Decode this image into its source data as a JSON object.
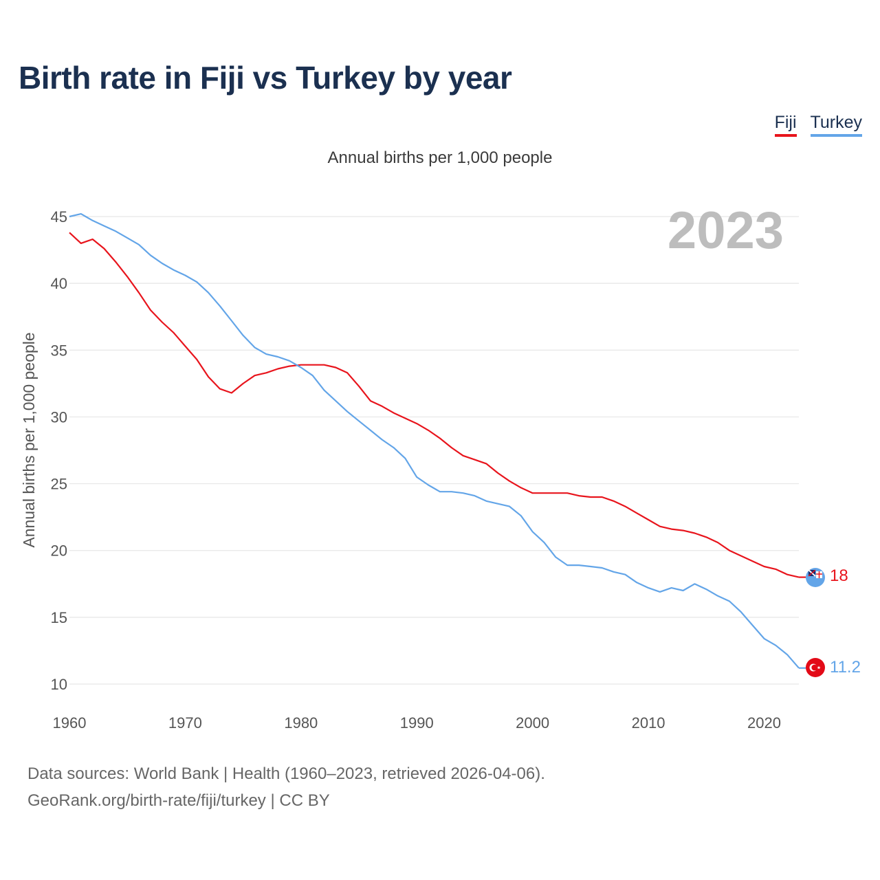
{
  "title": "Birth rate in Fiji vs Turkey by year",
  "subtitle": "Annual births per 1,000 people",
  "legend": [
    {
      "label": "Fiji",
      "color": "#e8141c"
    },
    {
      "label": "Turkey",
      "color": "#63a5e8"
    }
  ],
  "year_badge": "2023",
  "source": {
    "line1": "Data sources: World Bank | Health (1960–2023, retrieved 2026-04-06).",
    "line2": "GeoRank.org/birth-rate/fiji/turkey | CC BY"
  },
  "chart_data": {
    "type": "line",
    "title": "Birth rate in Fiji vs Turkey by year",
    "ylabel": "Annual births per 1,000 people",
    "xlabel": "",
    "xlim": [
      1960,
      2023
    ],
    "ylim": [
      10,
      45
    ],
    "x_ticks": [
      1960,
      1970,
      1980,
      1990,
      2000,
      2010,
      2020
    ],
    "y_ticks": [
      10,
      15,
      20,
      25,
      30,
      35,
      40,
      45
    ],
    "grid": true,
    "series": [
      {
        "name": "Fiji",
        "color": "#e8141c",
        "end_label": "18",
        "flag": "fiji-flag-icon",
        "x": [
          1960,
          1961,
          1962,
          1963,
          1964,
          1965,
          1966,
          1967,
          1968,
          1969,
          1970,
          1971,
          1972,
          1973,
          1974,
          1975,
          1976,
          1977,
          1978,
          1979,
          1980,
          1981,
          1982,
          1983,
          1984,
          1985,
          1986,
          1987,
          1988,
          1989,
          1990,
          1991,
          1992,
          1993,
          1994,
          1995,
          1996,
          1997,
          1998,
          1999,
          2000,
          2001,
          2002,
          2003,
          2004,
          2005,
          2006,
          2007,
          2008,
          2009,
          2010,
          2011,
          2012,
          2013,
          2014,
          2015,
          2016,
          2017,
          2018,
          2019,
          2020,
          2021,
          2022,
          2023
        ],
        "values": [
          43.8,
          43.0,
          43.3,
          42.6,
          41.6,
          40.5,
          39.3,
          38.0,
          37.1,
          36.3,
          35.3,
          34.3,
          33.0,
          32.1,
          31.8,
          32.5,
          33.1,
          33.3,
          33.6,
          33.8,
          33.9,
          33.9,
          33.9,
          33.7,
          33.3,
          32.3,
          31.2,
          30.8,
          30.3,
          29.9,
          29.5,
          29.0,
          28.4,
          27.7,
          27.1,
          26.8,
          26.5,
          25.8,
          25.2,
          24.7,
          24.3,
          24.3,
          24.3,
          24.3,
          24.1,
          24.0,
          24.0,
          23.7,
          23.3,
          22.8,
          22.3,
          21.8,
          21.6,
          21.5,
          21.3,
          21.0,
          20.6,
          20.0,
          19.6,
          19.2,
          18.8,
          18.6,
          18.2,
          18.0
        ]
      },
      {
        "name": "Turkey",
        "color": "#63a5e8",
        "end_label": "11.2",
        "flag": "turkey-flag-icon",
        "x": [
          1960,
          1961,
          1962,
          1963,
          1964,
          1965,
          1966,
          1967,
          1968,
          1969,
          1970,
          1971,
          1972,
          1973,
          1974,
          1975,
          1976,
          1977,
          1978,
          1979,
          1980,
          1981,
          1982,
          1983,
          1984,
          1985,
          1986,
          1987,
          1988,
          1989,
          1990,
          1991,
          1992,
          1993,
          1994,
          1995,
          1996,
          1997,
          1998,
          1999,
          2000,
          2001,
          2002,
          2003,
          2004,
          2005,
          2006,
          2007,
          2008,
          2009,
          2010,
          2011,
          2012,
          2013,
          2014,
          2015,
          2016,
          2017,
          2018,
          2019,
          2020,
          2021,
          2022,
          2023
        ],
        "values": [
          45.0,
          45.2,
          44.7,
          44.3,
          43.9,
          43.4,
          42.9,
          42.1,
          41.5,
          41.0,
          40.6,
          40.1,
          39.3,
          38.3,
          37.2,
          36.1,
          35.2,
          34.7,
          34.5,
          34.2,
          33.7,
          33.1,
          32.0,
          31.2,
          30.4,
          29.7,
          29.0,
          28.3,
          27.7,
          26.9,
          25.5,
          24.9,
          24.4,
          24.4,
          24.3,
          24.1,
          23.7,
          23.5,
          23.3,
          22.6,
          21.4,
          20.6,
          19.5,
          18.9,
          18.9,
          18.8,
          18.7,
          18.4,
          18.2,
          17.6,
          17.2,
          16.9,
          17.2,
          17.0,
          17.5,
          17.1,
          16.6,
          16.2,
          15.4,
          14.4,
          13.4,
          12.9,
          12.2,
          11.2
        ]
      }
    ]
  }
}
